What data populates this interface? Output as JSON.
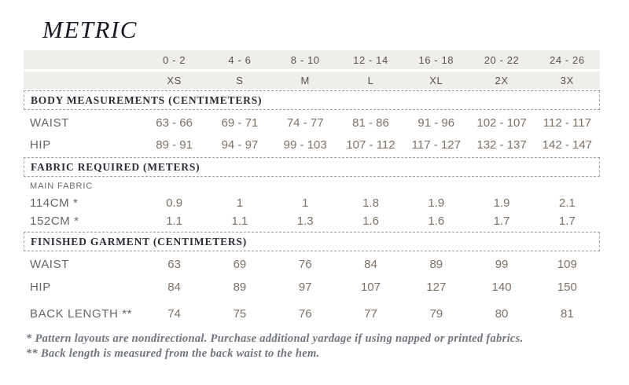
{
  "page": {
    "title": "METRIC"
  },
  "colors": {
    "band_bg": "#f0eeea",
    "title_text": "#181b24",
    "section_header_text": "#2c2d34",
    "size_header_text": "#57524c",
    "row_label_text": "#686663",
    "value_text": "#7d7165",
    "dashed_border": "#a59e96",
    "footnote_text": "#6f747d"
  },
  "table": {
    "size_numbers": [
      "0 - 2",
      "4 - 6",
      "8 - 10",
      "12 - 14",
      "16 - 18",
      "20 - 22",
      "24 - 26"
    ],
    "size_letters": [
      "XS",
      "S",
      "M",
      "L",
      "XL",
      "2X",
      "3X"
    ],
    "sections": [
      {
        "header": "BODY MEASUREMENTS (CENTIMETERS)",
        "rows": [
          {
            "label": "WAIST",
            "values": [
              "63 - 66",
              "69 - 71",
              "74 - 77",
              "81 - 86",
              "91 - 96",
              "102 - 107",
              "112 - 117"
            ]
          },
          {
            "label": "HIP",
            "values": [
              "89 - 91",
              "94 - 97",
              "99 - 103",
              "107 - 112",
              "117 - 127",
              "132 - 137",
              "142 - 147"
            ]
          }
        ]
      },
      {
        "header": "FABRIC REQUIRED (METERS)",
        "subheader": "MAIN FABRIC",
        "rows": [
          {
            "label": "114CM *",
            "values": [
              "0.9",
              "1",
              "1",
              "1.8",
              "1.9",
              "1.9",
              "2.1"
            ]
          },
          {
            "label": "152CM *",
            "values": [
              "1.1",
              "1.1",
              "1.3",
              "1.6",
              "1.6",
              "1.7",
              "1.7"
            ]
          }
        ]
      },
      {
        "header": "FINISHED GARMENT (CENTIMETERS)",
        "rows": [
          {
            "label": "WAIST",
            "values": [
              "63",
              "69",
              "76",
              "84",
              "89",
              "99",
              "109"
            ]
          },
          {
            "label": "HIP",
            "values": [
              "84",
              "89",
              "97",
              "107",
              "127",
              "140",
              "150"
            ]
          },
          {
            "label": "BACK LENGTH **",
            "values": [
              "74",
              "75",
              "76",
              "77",
              "79",
              "80",
              "81"
            ]
          }
        ]
      }
    ]
  },
  "footnotes": [
    "* Pattern layouts are nondirectional. Purchase additional yardage if using napped or printed fabrics.",
    "** Back length is measured from the back waist to the hem."
  ]
}
